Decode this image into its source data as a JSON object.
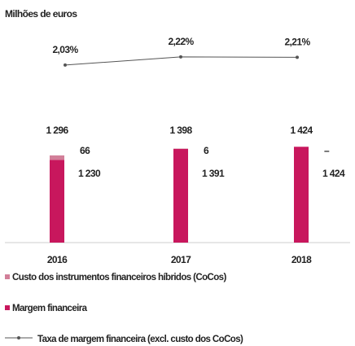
{
  "chart_data": {
    "type": "stacked_bar_line",
    "subtitle": "Milhões de euros",
    "categories": [
      "2016",
      "2017",
      "2018"
    ],
    "ylim": [
      0,
      1500
    ],
    "series": [
      {
        "name": "Margem financeira",
        "color": "#c8175d",
        "values": [
          1230,
          1391,
          1424
        ],
        "value_labels": [
          "1 230",
          "1 391",
          "1 424"
        ]
      },
      {
        "name": "Custo dos instrumentos financeiros híbridos (CoCos)",
        "color": "#d27f99",
        "values": [
          66,
          6,
          0
        ],
        "value_labels": [
          "66",
          "6",
          "–"
        ]
      }
    ],
    "totals": [
      1296,
      1398,
      1424
    ],
    "totals_labels": [
      "1 296",
      "1 398",
      "1 424"
    ],
    "line": {
      "name": "Taxa de margem financeira (excl. custo dos CoCos)",
      "color": "#555555",
      "values": [
        2.03,
        2.22,
        2.21
      ],
      "value_labels": [
        "2,03%",
        "2,22%",
        "2,21%"
      ],
      "axis": "y2"
    },
    "y2lim": [
      1.5,
      2.5
    ]
  }
}
